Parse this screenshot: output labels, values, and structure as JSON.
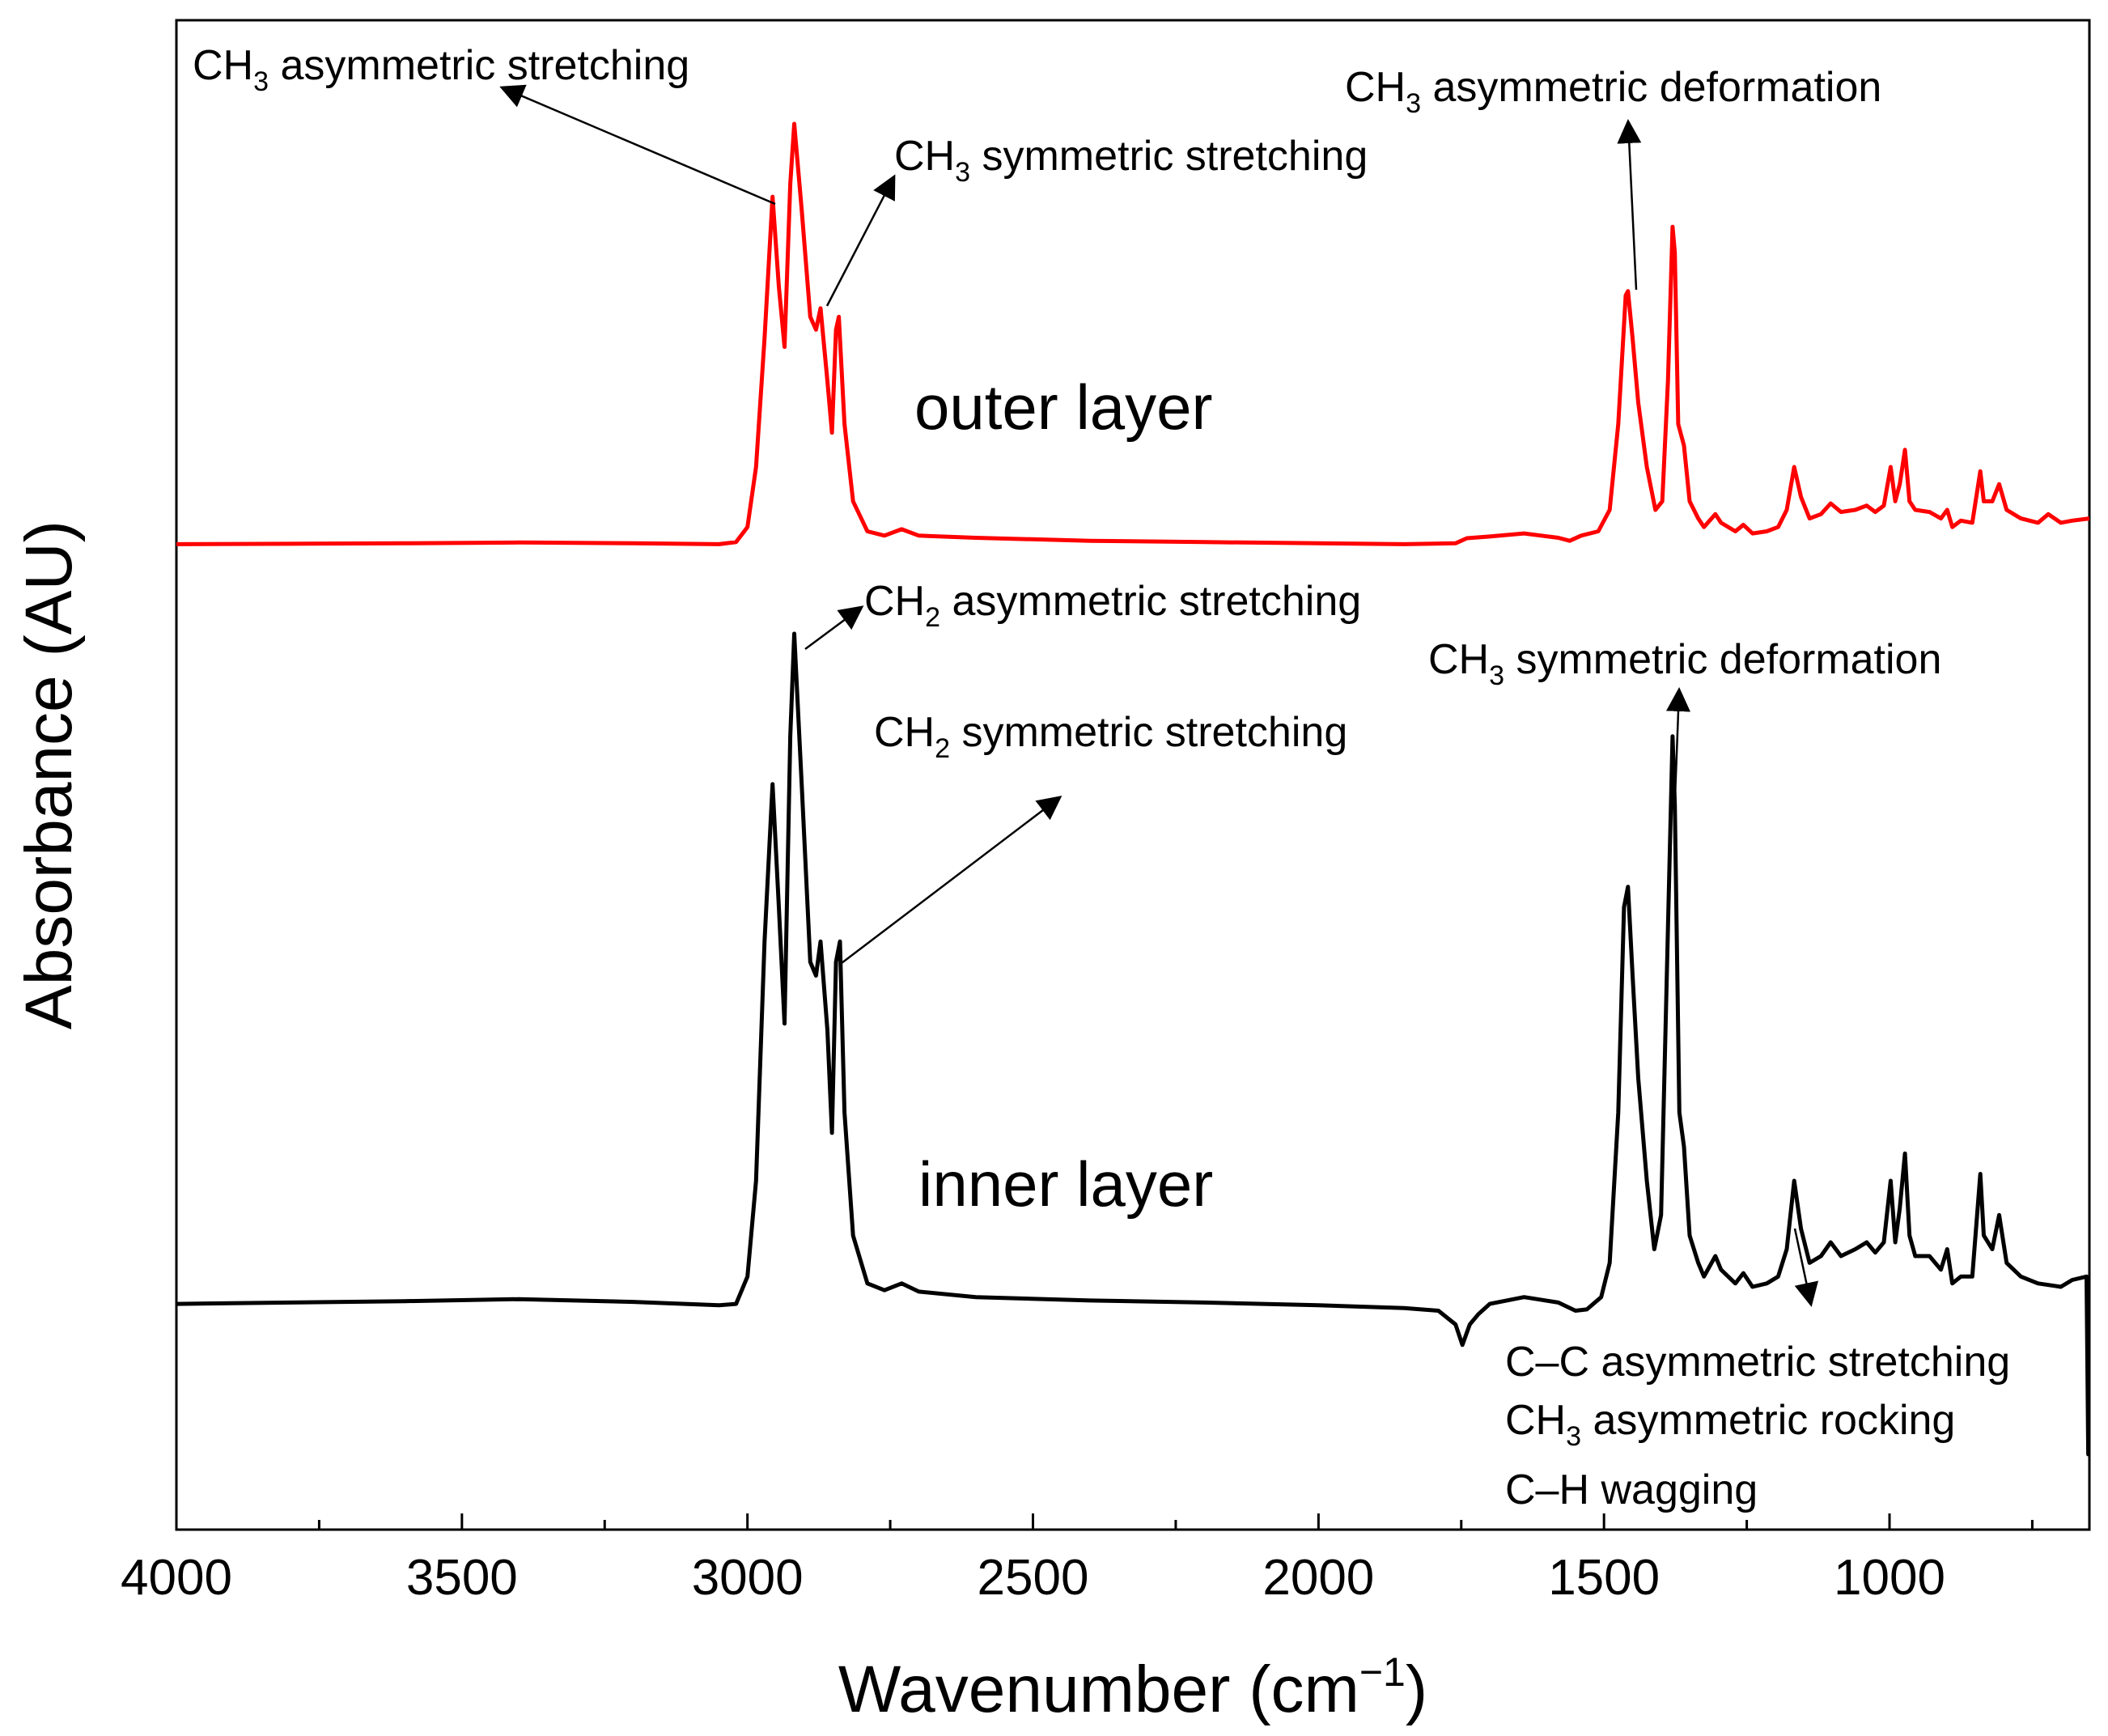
{
  "chart_data": {
    "type": "line",
    "xlabel": "Wavenumber (cm",
    "xlabel_sup": "−1",
    "xlabel_close": ")",
    "ylabel": "Absorbance (AU)",
    "xlim": [
      4000,
      650
    ],
    "x_reversed": true,
    "y_ticks_shown": false,
    "grid": false,
    "x_ticks": [
      "4000",
      "3500",
      "3000",
      "2500",
      "2000",
      "1500",
      "1000"
    ],
    "series": [
      {
        "name": "outer layer",
        "color": "#ff0000",
        "points": [
          [
            4000,
            0.02
          ],
          [
            3800,
            0.021
          ],
          [
            3600,
            0.022
          ],
          [
            3400,
            0.024
          ],
          [
            3200,
            0.022
          ],
          [
            3050,
            0.02
          ],
          [
            3020,
            0.025
          ],
          [
            3000,
            0.06
          ],
          [
            2985,
            0.2
          ],
          [
            2970,
            0.5
          ],
          [
            2956,
            0.83
          ],
          [
            2945,
            0.62
          ],
          [
            2935,
            0.48
          ],
          [
            2925,
            0.86
          ],
          [
            2918,
            1.0
          ],
          [
            2905,
            0.8
          ],
          [
            2890,
            0.55
          ],
          [
            2880,
            0.52
          ],
          [
            2872,
            0.57
          ],
          [
            2860,
            0.4
          ],
          [
            2852,
            0.28
          ],
          [
            2845,
            0.52
          ],
          [
            2840,
            0.55
          ],
          [
            2830,
            0.3
          ],
          [
            2815,
            0.12
          ],
          [
            2790,
            0.05
          ],
          [
            2760,
            0.04
          ],
          [
            2730,
            0.055
          ],
          [
            2700,
            0.04
          ],
          [
            2600,
            0.035
          ],
          [
            2400,
            0.028
          ],
          [
            2200,
            0.025
          ],
          [
            2000,
            0.022
          ],
          [
            1850,
            0.02
          ],
          [
            1760,
            0.022
          ],
          [
            1740,
            0.034
          ],
          [
            1700,
            0.038
          ],
          [
            1640,
            0.045
          ],
          [
            1580,
            0.035
          ],
          [
            1560,
            0.028
          ],
          [
            1540,
            0.04
          ],
          [
            1510,
            0.05
          ],
          [
            1490,
            0.1
          ],
          [
            1475,
            0.3
          ],
          [
            1462,
            0.6
          ],
          [
            1458,
            0.61
          ],
          [
            1450,
            0.5
          ],
          [
            1440,
            0.35
          ],
          [
            1425,
            0.2
          ],
          [
            1410,
            0.1
          ],
          [
            1398,
            0.12
          ],
          [
            1388,
            0.4
          ],
          [
            1380,
            0.76
          ],
          [
            1376,
            0.7
          ],
          [
            1370,
            0.3
          ],
          [
            1360,
            0.25
          ],
          [
            1350,
            0.12
          ],
          [
            1335,
            0.08
          ],
          [
            1325,
            0.06
          ],
          [
            1305,
            0.09
          ],
          [
            1295,
            0.07
          ],
          [
            1270,
            0.05
          ],
          [
            1256,
            0.065
          ],
          [
            1240,
            0.045
          ],
          [
            1215,
            0.05
          ],
          [
            1195,
            0.06
          ],
          [
            1180,
            0.1
          ],
          [
            1167,
            0.2
          ],
          [
            1155,
            0.13
          ],
          [
            1140,
            0.08
          ],
          [
            1120,
            0.09
          ],
          [
            1103,
            0.115
          ],
          [
            1085,
            0.095
          ],
          [
            1060,
            0.1
          ],
          [
            1040,
            0.11
          ],
          [
            1025,
            0.095
          ],
          [
            1010,
            0.11
          ],
          [
            998,
            0.2
          ],
          [
            990,
            0.12
          ],
          [
            982,
            0.16
          ],
          [
            973,
            0.24
          ],
          [
            965,
            0.12
          ],
          [
            955,
            0.1
          ],
          [
            930,
            0.095
          ],
          [
            910,
            0.08
          ],
          [
            899,
            0.1
          ],
          [
            890,
            0.06
          ],
          [
            875,
            0.075
          ],
          [
            855,
            0.07
          ],
          [
            841,
            0.19
          ],
          [
            835,
            0.12
          ],
          [
            820,
            0.12
          ],
          [
            808,
            0.16
          ],
          [
            795,
            0.1
          ],
          [
            770,
            0.08
          ],
          [
            740,
            0.07
          ],
          [
            722,
            0.09
          ],
          [
            700,
            0.07
          ],
          [
            680,
            0.075
          ],
          [
            650,
            0.08
          ]
        ]
      },
      {
        "name": "inner layer",
        "color": "#000000",
        "points": [
          [
            4000,
            0.02
          ],
          [
            3800,
            0.022
          ],
          [
            3600,
            0.024
          ],
          [
            3400,
            0.027
          ],
          [
            3200,
            0.023
          ],
          [
            3050,
            0.018
          ],
          [
            3020,
            0.02
          ],
          [
            3000,
            0.06
          ],
          [
            2985,
            0.2
          ],
          [
            2970,
            0.55
          ],
          [
            2956,
            0.78
          ],
          [
            2945,
            0.6
          ],
          [
            2935,
            0.43
          ],
          [
            2925,
            0.85
          ],
          [
            2918,
            1.0
          ],
          [
            2905,
            0.78
          ],
          [
            2890,
            0.52
          ],
          [
            2880,
            0.5
          ],
          [
            2872,
            0.55
          ],
          [
            2860,
            0.42
          ],
          [
            2852,
            0.27
          ],
          [
            2845,
            0.52
          ],
          [
            2838,
            0.55
          ],
          [
            2830,
            0.3
          ],
          [
            2815,
            0.12
          ],
          [
            2790,
            0.05
          ],
          [
            2760,
            0.04
          ],
          [
            2730,
            0.05
          ],
          [
            2700,
            0.038
          ],
          [
            2600,
            0.03
          ],
          [
            2400,
            0.025
          ],
          [
            2200,
            0.022
          ],
          [
            2000,
            0.018
          ],
          [
            1850,
            0.014
          ],
          [
            1790,
            0.01
          ],
          [
            1760,
            -0.01
          ],
          [
            1748,
            -0.04
          ],
          [
            1735,
            -0.01
          ],
          [
            1720,
            0.005
          ],
          [
            1700,
            0.02
          ],
          [
            1640,
            0.03
          ],
          [
            1580,
            0.022
          ],
          [
            1550,
            0.01
          ],
          [
            1530,
            0.012
          ],
          [
            1505,
            0.03
          ],
          [
            1490,
            0.08
          ],
          [
            1475,
            0.3
          ],
          [
            1465,
            0.6
          ],
          [
            1458,
            0.63
          ],
          [
            1450,
            0.5
          ],
          [
            1440,
            0.35
          ],
          [
            1425,
            0.2
          ],
          [
            1412,
            0.1
          ],
          [
            1400,
            0.15
          ],
          [
            1390,
            0.5
          ],
          [
            1380,
            0.85
          ],
          [
            1376,
            0.75
          ],
          [
            1368,
            0.3
          ],
          [
            1360,
            0.25
          ],
          [
            1350,
            0.12
          ],
          [
            1335,
            0.08
          ],
          [
            1325,
            0.06
          ],
          [
            1305,
            0.09
          ],
          [
            1295,
            0.07
          ],
          [
            1270,
            0.05
          ],
          [
            1256,
            0.065
          ],
          [
            1240,
            0.045
          ],
          [
            1215,
            0.05
          ],
          [
            1195,
            0.06
          ],
          [
            1180,
            0.1
          ],
          [
            1167,
            0.2
          ],
          [
            1155,
            0.13
          ],
          [
            1140,
            0.08
          ],
          [
            1120,
            0.09
          ],
          [
            1103,
            0.11
          ],
          [
            1085,
            0.09
          ],
          [
            1060,
            0.1
          ],
          [
            1040,
            0.11
          ],
          [
            1025,
            0.095
          ],
          [
            1010,
            0.11
          ],
          [
            998,
            0.2
          ],
          [
            990,
            0.11
          ],
          [
            982,
            0.16
          ],
          [
            973,
            0.24
          ],
          [
            965,
            0.12
          ],
          [
            955,
            0.09
          ],
          [
            930,
            0.09
          ],
          [
            910,
            0.07
          ],
          [
            899,
            0.1
          ],
          [
            890,
            0.05
          ],
          [
            875,
            0.06
          ],
          [
            855,
            0.06
          ],
          [
            841,
            0.21
          ],
          [
            835,
            0.12
          ],
          [
            820,
            0.1
          ],
          [
            808,
            0.15
          ],
          [
            795,
            0.08
          ],
          [
            770,
            0.06
          ],
          [
            740,
            0.05
          ],
          [
            700,
            0.045
          ],
          [
            680,
            0.055
          ],
          [
            655,
            0.06
          ],
          [
            652,
            -0.2
          ],
          [
            650,
            -0.2
          ]
        ]
      }
    ],
    "annotations": [
      {
        "id": "outer-ch3-asym-str",
        "parts": [
          [
            "CH"
          ],
          [
            "3",
            "sub"
          ],
          [
            " asymmetric stretching"
          ]
        ]
      },
      {
        "id": "outer-ch3-sym-str",
        "parts": [
          [
            "CH"
          ],
          [
            "3",
            "sub"
          ],
          [
            " symmetric  stretching"
          ]
        ]
      },
      {
        "id": "outer-ch3-asym-def",
        "parts": [
          [
            "CH"
          ],
          [
            "3",
            "sub"
          ],
          [
            " asymmetric deformation"
          ]
        ]
      },
      {
        "id": "inner-ch2-asym-str",
        "parts": [
          [
            "CH"
          ],
          [
            "2",
            "sub"
          ],
          [
            " asymmetric stretching"
          ]
        ]
      },
      {
        "id": "inner-ch2-sym-str",
        "parts": [
          [
            "CH"
          ],
          [
            "2",
            "sub"
          ],
          [
            " symmetric stretching"
          ]
        ]
      },
      {
        "id": "inner-ch3-sym-def",
        "parts": [
          [
            "CH"
          ],
          [
            "3",
            "sub"
          ],
          [
            " symmetric deformation"
          ]
        ]
      },
      {
        "id": "inner-cc-asym-str",
        "parts": [
          [
            "C–C asymmetric stretching"
          ]
        ]
      },
      {
        "id": "inner-ch3-asym-rock",
        "parts": [
          [
            "CH"
          ],
          [
            "3",
            "sub"
          ],
          [
            " asymmetric rocking"
          ]
        ]
      },
      {
        "id": "inner-ch-wag",
        "parts": [
          [
            "C–H wagging"
          ]
        ]
      }
    ]
  }
}
